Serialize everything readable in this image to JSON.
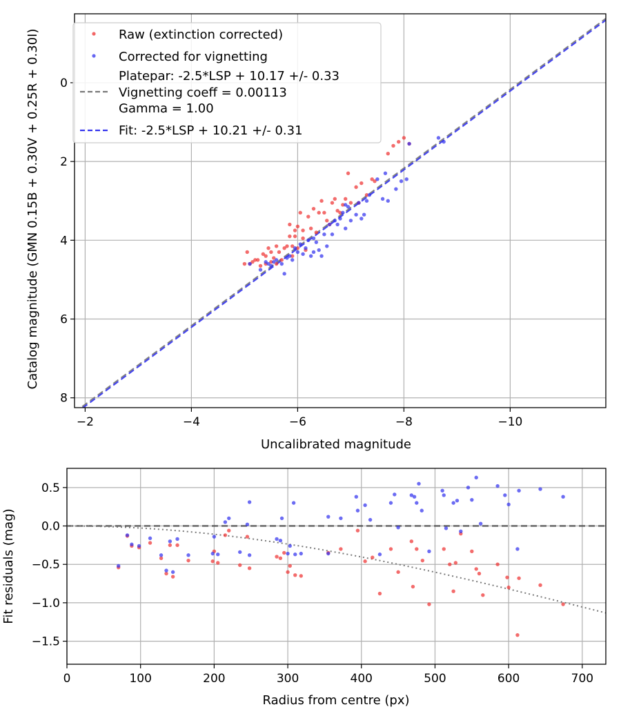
{
  "chart_data": [
    {
      "type": "scatter",
      "xlabel": "Uncalibrated magnitude",
      "ylabel": "Catalog magnitude (GMN 0.15B + 0.30V + 0.25R + 0.30I)",
      "xlim": [
        -1.8,
        -11.8
      ],
      "ylim": [
        8.25,
        -1.75
      ],
      "x_ticks": [
        -2,
        -4,
        -6,
        -8,
        -10
      ],
      "x_tick_labels": [
        "−2",
        "−4",
        "−6",
        "−8",
        "−10"
      ],
      "y_ticks": [
        0,
        2,
        4,
        6,
        8
      ],
      "y_tick_labels": [
        "0",
        "2",
        "4",
        "6",
        "8"
      ],
      "grid": true,
      "legend_position": "top-left",
      "legend": [
        {
          "label": "Raw (extinction corrected)",
          "marker": "dot",
          "color": "#ee3333"
        },
        {
          "label": "Corrected for vignetting",
          "marker": "dot",
          "color": "#3333ee"
        },
        {
          "label_lines": [
            "Platepar: -2.5*LSP + 10.17 +/- 0.33",
            "Vignetting coeff = 0.00113",
            "Gamma = 1.00"
          ],
          "marker": "dash",
          "color": "#777777"
        },
        {
          "label": "Fit: -2.5*LSP + 10.21 +/- 0.31",
          "marker": "dash",
          "color": "#3333ee"
        }
      ],
      "lines": [
        {
          "name": "Platepar",
          "slope": 1.0,
          "intercept": 10.17,
          "color": "#777777",
          "style": "dashed"
        },
        {
          "name": "Fit",
          "slope": 1.0,
          "intercept": 10.21,
          "color": "#3333ee",
          "style": "dashed"
        }
      ],
      "series": [
        {
          "name": "Raw (extinction corrected)",
          "color": "#ee3333",
          "points": [
            [
              -5.0,
              4.6
            ],
            [
              -5.05,
              4.3
            ],
            [
              -5.1,
              4.6
            ],
            [
              -5.15,
              4.55
            ],
            [
              -5.2,
              4.5
            ],
            [
              -5.25,
              4.5
            ],
            [
              -5.3,
              4.65
            ],
            [
              -5.35,
              4.35
            ],
            [
              -5.4,
              4.4
            ],
            [
              -5.4,
              4.6
            ],
            [
              -5.45,
              4.2
            ],
            [
              -5.5,
              4.3
            ],
            [
              -5.5,
              4.55
            ],
            [
              -5.55,
              4.45
            ],
            [
              -5.6,
              4.15
            ],
            [
              -5.6,
              4.6
            ],
            [
              -5.65,
              4.3
            ],
            [
              -5.7,
              4.5
            ],
            [
              -5.75,
              4.2
            ],
            [
              -5.8,
              4.15
            ],
            [
              -5.85,
              3.6
            ],
            [
              -5.85,
              3.9
            ],
            [
              -5.9,
              4.15
            ],
            [
              -5.9,
              4.4
            ],
            [
              -5.95,
              3.75
            ],
            [
              -6.0,
              3.65
            ],
            [
              -6.0,
              4.2
            ],
            [
              -6.05,
              3.3
            ],
            [
              -6.1,
              3.75
            ],
            [
              -6.1,
              3.95
            ],
            [
              -6.15,
              4.25
            ],
            [
              -6.2,
              3.4
            ],
            [
              -6.25,
              3.7
            ],
            [
              -6.3,
              3.2
            ],
            [
              -6.35,
              3.8
            ],
            [
              -6.4,
              3.3
            ],
            [
              -6.45,
              3.0
            ],
            [
              -6.5,
              3.3
            ],
            [
              -6.55,
              3.5
            ],
            [
              -6.6,
              3.6
            ],
            [
              -6.65,
              3.05
            ],
            [
              -6.7,
              2.95
            ],
            [
              -6.75,
              3.25
            ],
            [
              -6.8,
              3.3
            ],
            [
              -6.85,
              3.1
            ],
            [
              -6.9,
              2.95
            ],
            [
              -6.95,
              2.3
            ],
            [
              -7.0,
              3.05
            ],
            [
              -7.1,
              2.65
            ],
            [
              -7.15,
              3.05
            ],
            [
              -7.2,
              2.55
            ],
            [
              -7.3,
              2.85
            ],
            [
              -7.4,
              2.45
            ],
            [
              -7.45,
              2.5
            ],
            [
              -7.7,
              1.8
            ],
            [
              -7.8,
              1.6
            ],
            [
              -7.9,
              1.5
            ],
            [
              -8.0,
              1.4
            ],
            [
              -8.1,
              1.55
            ],
            [
              -5.95,
              3.9
            ]
          ]
        },
        {
          "name": "Corrected for vignetting",
          "color": "#3333ee",
          "points": [
            [
              -5.1,
              4.6
            ],
            [
              -5.3,
              4.75
            ],
            [
              -5.4,
              4.55
            ],
            [
              -5.45,
              4.6
            ],
            [
              -5.5,
              4.65
            ],
            [
              -5.55,
              4.55
            ],
            [
              -5.6,
              4.5
            ],
            [
              -5.7,
              4.6
            ],
            [
              -5.75,
              4.85
            ],
            [
              -5.8,
              4.45
            ],
            [
              -5.85,
              4.4
            ],
            [
              -5.9,
              4.5
            ],
            [
              -5.95,
              4.2
            ],
            [
              -6.0,
              4.3
            ],
            [
              -6.05,
              4.1
            ],
            [
              -6.1,
              4.35
            ],
            [
              -6.15,
              4.2
            ],
            [
              -6.2,
              4.0
            ],
            [
              -6.25,
              4.4
            ],
            [
              -6.3,
              4.3
            ],
            [
              -6.35,
              4.05
            ],
            [
              -6.4,
              4.25
            ],
            [
              -6.45,
              4.4
            ],
            [
              -6.5,
              3.85
            ],
            [
              -6.55,
              4.15
            ],
            [
              -6.6,
              3.6
            ],
            [
              -6.65,
              3.85
            ],
            [
              -6.7,
              3.5
            ],
            [
              -6.75,
              3.6
            ],
            [
              -6.8,
              3.45
            ],
            [
              -6.85,
              3.3
            ],
            [
              -6.9,
              3.7
            ],
            [
              -6.95,
              3.15
            ],
            [
              -7.0,
              3.5
            ],
            [
              -7.1,
              3.35
            ],
            [
              -7.15,
              3.05
            ],
            [
              -7.2,
              3.45
            ],
            [
              -7.25,
              3.35
            ],
            [
              -7.3,
              3.0
            ],
            [
              -7.35,
              2.85
            ],
            [
              -7.5,
              2.45
            ],
            [
              -7.6,
              2.95
            ],
            [
              -7.65,
              2.3
            ],
            [
              -7.7,
              3.0
            ],
            [
              -7.85,
              2.7
            ],
            [
              -7.95,
              2.5
            ],
            [
              -8.05,
              2.45
            ],
            [
              -8.1,
              1.55
            ],
            [
              -8.65,
              1.4
            ],
            [
              -8.75,
              1.5
            ],
            [
              -6.9,
              3.1
            ],
            [
              -6.3,
              3.95
            ]
          ]
        }
      ]
    },
    {
      "type": "scatter",
      "xlabel": "Radius from centre (px)",
      "ylabel": "Fit residuals (mag)",
      "xlim": [
        0,
        732
      ],
      "ylim": [
        -1.8,
        0.75
      ],
      "x_ticks": [
        0,
        100,
        200,
        300,
        400,
        500,
        600,
        700
      ],
      "x_tick_labels": [
        "0",
        "100",
        "200",
        "300",
        "400",
        "500",
        "600",
        "700"
      ],
      "y_ticks": [
        0.5,
        0.0,
        -0.5,
        -1.0,
        -1.5
      ],
      "y_tick_labels": [
        "0.5",
        "0.0",
        "−0.5",
        "−1.0",
        "−1.5"
      ],
      "grid": true,
      "reference_line": {
        "y": 0.0,
        "color": "#555555",
        "style": "dashed"
      },
      "model_curve": {
        "name": "Vignetting model",
        "coeff": 0.00113,
        "color": "#777777",
        "style": "dotted"
      },
      "series": [
        {
          "name": "Raw (extinction corrected)",
          "color": "#ee3333",
          "points": [
            [
              70,
              -0.54
            ],
            [
              82,
              -0.13
            ],
            [
              88,
              -0.26
            ],
            [
              98,
              -0.28
            ],
            [
              113,
              -0.22
            ],
            [
              128,
              -0.42
            ],
            [
              135,
              -0.62
            ],
            [
              140,
              -0.25
            ],
            [
              144,
              -0.66
            ],
            [
              150,
              -0.25
            ],
            [
              165,
              -0.45
            ],
            [
              198,
              -0.46
            ],
            [
              200,
              -0.33
            ],
            [
              205,
              -0.48
            ],
            [
              215,
              -0.12
            ],
            [
              220,
              -0.06
            ],
            [
              235,
              -0.51
            ],
            [
              245,
              -0.14
            ],
            [
              248,
              -0.55
            ],
            [
              285,
              -0.4
            ],
            [
              290,
              -0.42
            ],
            [
              295,
              -0.35
            ],
            [
              300,
              -0.6
            ],
            [
              303,
              -0.52
            ],
            [
              310,
              -0.64
            ],
            [
              318,
              -0.65
            ],
            [
              355,
              -0.35
            ],
            [
              372,
              -0.3
            ],
            [
              395,
              -0.06
            ],
            [
              405,
              -0.46
            ],
            [
              415,
              -0.41
            ],
            [
              425,
              -0.88
            ],
            [
              440,
              -0.3
            ],
            [
              450,
              -0.6
            ],
            [
              468,
              -0.2
            ],
            [
              470,
              -0.79
            ],
            [
              475,
              -0.3
            ],
            [
              483,
              -0.45
            ],
            [
              492,
              -1.02
            ],
            [
              512,
              -0.3
            ],
            [
              520,
              -0.5
            ],
            [
              525,
              -0.85
            ],
            [
              528,
              -0.48
            ],
            [
              535,
              -0.1
            ],
            [
              550,
              -0.33
            ],
            [
              556,
              -0.56
            ],
            [
              560,
              -0.62
            ],
            [
              565,
              -0.9
            ],
            [
              585,
              -0.5
            ],
            [
              598,
              -0.67
            ],
            [
              600,
              -0.8
            ],
            [
              612,
              -1.42
            ],
            [
              614,
              -0.68
            ],
            [
              643,
              -0.77
            ],
            [
              674,
              -1.02
            ]
          ]
        },
        {
          "name": "Corrected for vignetting",
          "color": "#3333ee",
          "points": [
            [
              70,
              -0.52
            ],
            [
              82,
              -0.12
            ],
            [
              88,
              -0.24
            ],
            [
              98,
              -0.26
            ],
            [
              113,
              -0.16
            ],
            [
              128,
              -0.38
            ],
            [
              135,
              -0.58
            ],
            [
              140,
              -0.2
            ],
            [
              144,
              -0.6
            ],
            [
              150,
              -0.17
            ],
            [
              165,
              -0.38
            ],
            [
              198,
              -0.36
            ],
            [
              200,
              -0.14
            ],
            [
              205,
              -0.37
            ],
            [
              215,
              0.05
            ],
            [
              220,
              0.1
            ],
            [
              235,
              -0.34
            ],
            [
              245,
              0.02
            ],
            [
              248,
              0.31
            ],
            [
              248,
              -0.38
            ],
            [
              285,
              -0.17
            ],
            [
              290,
              -0.19
            ],
            [
              292,
              0.1
            ],
            [
              300,
              -0.36
            ],
            [
              303,
              -0.26
            ],
            [
              308,
              0.3
            ],
            [
              310,
              -0.37
            ],
            [
              318,
              -0.36
            ],
            [
              355,
              0.12
            ],
            [
              355,
              -0.36
            ],
            [
              372,
              0.1
            ],
            [
              393,
              0.38
            ],
            [
              395,
              0.2
            ],
            [
              405,
              0.27
            ],
            [
              412,
              0.08
            ],
            [
              425,
              -0.37
            ],
            [
              440,
              0.3
            ],
            [
              445,
              0.41
            ],
            [
              450,
              -0.02
            ],
            [
              468,
              0.4
            ],
            [
              472,
              0.38
            ],
            [
              475,
              0.3
            ],
            [
              478,
              0.55
            ],
            [
              482,
              0.2
            ],
            [
              492,
              -0.33
            ],
            [
              510,
              0.46
            ],
            [
              512,
              0.4
            ],
            [
              515,
              -0.03
            ],
            [
              525,
              0.3
            ],
            [
              530,
              0.33
            ],
            [
              535,
              -0.07
            ],
            [
              545,
              0.5
            ],
            [
              550,
              0.34
            ],
            [
              556,
              0.63
            ],
            [
              562,
              0.03
            ],
            [
              585,
              0.52
            ],
            [
              595,
              0.4
            ],
            [
              600,
              0.28
            ],
            [
              612,
              -0.3
            ],
            [
              614,
              0.46
            ],
            [
              643,
              0.48
            ],
            [
              674,
              0.38
            ]
          ]
        }
      ]
    }
  ]
}
